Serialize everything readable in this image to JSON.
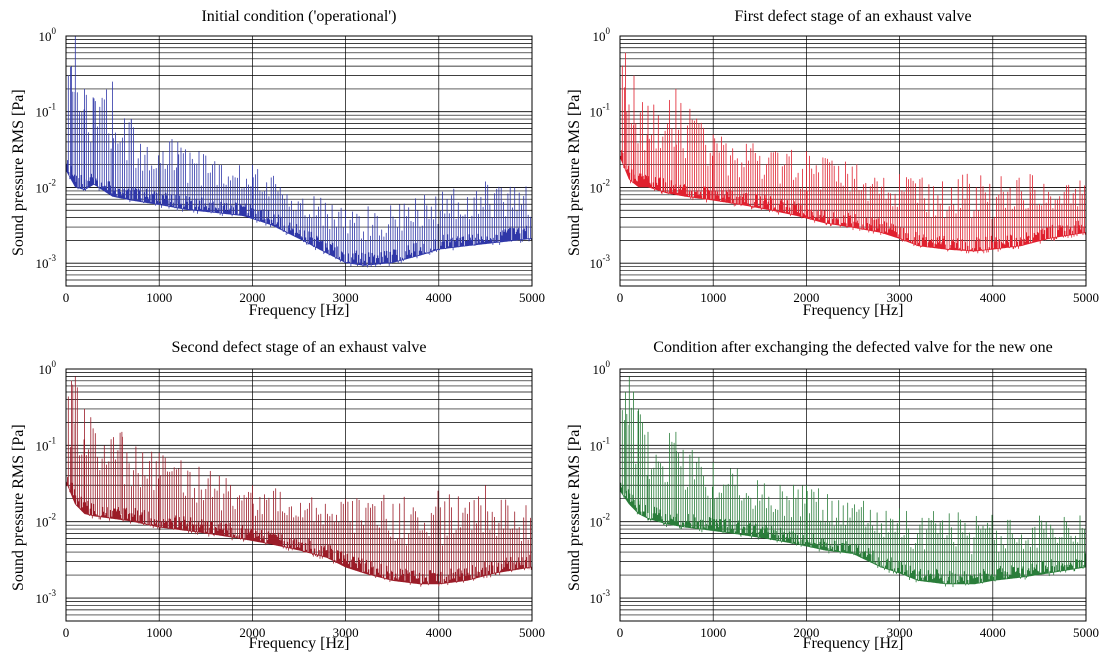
{
  "chart_data": [
    {
      "type": "line",
      "title": "Initial condition ('operational')",
      "xlabel": "Frequency [Hz]",
      "ylabel": "Sound pressure RMS [Pa]",
      "xlim": [
        0,
        5000
      ],
      "ylim": [
        0.0005,
        1
      ],
      "yscale": "log",
      "grid": true,
      "xticks": [
        "0",
        "1000",
        "2000",
        "3000",
        "4000",
        "5000"
      ],
      "yticks": [
        {
          "base": "10",
          "exp": "0"
        },
        {
          "base": "10",
          "exp": "-1"
        },
        {
          "base": "10",
          "exp": "-2"
        },
        {
          "base": "10",
          "exp": "-3"
        }
      ],
      "color": "#2f37a8",
      "series": [
        {
          "x": [
            0,
            100,
            200,
            300,
            500,
            700,
            1000,
            1300,
            1600,
            1900,
            2200,
            2500,
            2800,
            3000,
            3200,
            3500,
            3800,
            4000,
            4300,
            4600,
            5000
          ],
          "values": [
            0.02,
            0.012,
            0.011,
            0.013,
            0.009,
            0.008,
            0.007,
            0.006,
            0.0055,
            0.005,
            0.0038,
            0.0025,
            0.0016,
            0.0012,
            0.0011,
            0.0012,
            0.0015,
            0.0018,
            0.002,
            0.0022,
            0.0025
          ],
          "peaks": [
            [
              100,
              1.0
            ],
            [
              60,
              0.4
            ],
            [
              200,
              0.2
            ],
            [
              300,
              0.15
            ],
            [
              500,
              0.25
            ],
            [
              700,
              0.08
            ],
            [
              1200,
              0.04
            ],
            [
              2000,
              0.02
            ],
            [
              3000,
              0.005
            ],
            [
              4500,
              0.012
            ],
            [
              5000,
              0.01
            ]
          ]
        }
      ]
    },
    {
      "type": "line",
      "title": "First defect stage of an exhaust valve",
      "xlabel": "Frequency [Hz]",
      "ylabel": "Sound pressure RMS [Pa]",
      "xlim": [
        0,
        5000
      ],
      "ylim": [
        0.0005,
        1
      ],
      "yscale": "log",
      "grid": true,
      "xticks": [
        "0",
        "1000",
        "2000",
        "3000",
        "4000",
        "5000"
      ],
      "yticks": [
        {
          "base": "10",
          "exp": "0"
        },
        {
          "base": "10",
          "exp": "-1"
        },
        {
          "base": "10",
          "exp": "-2"
        },
        {
          "base": "10",
          "exp": "-3"
        }
      ],
      "color": "#e0202e",
      "series": [
        {
          "x": [
            0,
            100,
            200,
            300,
            500,
            700,
            1000,
            1300,
            1600,
            1900,
            2200,
            2500,
            2800,
            3000,
            3200,
            3500,
            3800,
            4000,
            4300,
            4600,
            5000
          ],
          "values": [
            0.03,
            0.015,
            0.012,
            0.012,
            0.01,
            0.009,
            0.008,
            0.007,
            0.006,
            0.005,
            0.004,
            0.0035,
            0.003,
            0.0025,
            0.002,
            0.0018,
            0.0017,
            0.0018,
            0.002,
            0.0025,
            0.003
          ],
          "peaks": [
            [
              60,
              0.6
            ],
            [
              150,
              0.3
            ],
            [
              300,
              0.12
            ],
            [
              600,
              0.2
            ],
            [
              1000,
              0.05
            ],
            [
              2000,
              0.03
            ],
            [
              3000,
              0.015
            ],
            [
              4400,
              0.015
            ],
            [
              5000,
              0.012
            ]
          ]
        }
      ]
    },
    {
      "type": "line",
      "title": "Second defect stage of an exhaust valve",
      "xlabel": "Frequency [Hz]",
      "ylabel": "Sound pressure RMS [Pa]",
      "xlim": [
        0,
        5000
      ],
      "ylim": [
        0.0005,
        1
      ],
      "yscale": "log",
      "grid": true,
      "xticks": [
        "0",
        "1000",
        "2000",
        "3000",
        "4000",
        "5000"
      ],
      "yticks": [
        {
          "base": "10",
          "exp": "0"
        },
        {
          "base": "10",
          "exp": "-1"
        },
        {
          "base": "10",
          "exp": "-2"
        },
        {
          "base": "10",
          "exp": "-3"
        }
      ],
      "color": "#9b1c28",
      "series": [
        {
          "x": [
            0,
            100,
            200,
            300,
            500,
            700,
            1000,
            1300,
            1600,
            1900,
            2200,
            2500,
            2800,
            3000,
            3200,
            3500,
            3800,
            4000,
            4300,
            4600,
            5000
          ],
          "values": [
            0.04,
            0.02,
            0.015,
            0.014,
            0.013,
            0.012,
            0.01,
            0.009,
            0.008,
            0.007,
            0.006,
            0.005,
            0.004,
            0.003,
            0.0025,
            0.002,
            0.0018,
            0.0018,
            0.002,
            0.0025,
            0.003
          ],
          "peaks": [
            [
              60,
              0.7
            ],
            [
              100,
              0.8
            ],
            [
              200,
              0.3
            ],
            [
              600,
              0.15
            ],
            [
              1000,
              0.08
            ],
            [
              2000,
              0.03
            ],
            [
              3000,
              0.02
            ],
            [
              4500,
              0.03
            ],
            [
              5000,
              0.015
            ]
          ]
        }
      ]
    },
    {
      "type": "line",
      "title": "Condition after exchanging the defected valve for the new one",
      "xlabel": "Frequency [Hz]",
      "ylabel": "Sound pressure RMS [Pa]",
      "xlim": [
        0,
        5000
      ],
      "ylim": [
        0.0005,
        1
      ],
      "yscale": "log",
      "grid": true,
      "xticks": [
        "0",
        "1000",
        "2000",
        "3000",
        "4000",
        "5000"
      ],
      "yticks": [
        {
          "base": "10",
          "exp": "0"
        },
        {
          "base": "10",
          "exp": "-1"
        },
        {
          "base": "10",
          "exp": "-2"
        },
        {
          "base": "10",
          "exp": "-3"
        }
      ],
      "color": "#2a7d3a",
      "series": [
        {
          "x": [
            0,
            100,
            200,
            300,
            500,
            700,
            1000,
            1300,
            1600,
            1900,
            2200,
            2500,
            2800,
            3000,
            3200,
            3500,
            3800,
            4000,
            4300,
            4600,
            5000
          ],
          "values": [
            0.03,
            0.02,
            0.015,
            0.013,
            0.011,
            0.01,
            0.009,
            0.008,
            0.007,
            0.006,
            0.005,
            0.0045,
            0.003,
            0.0025,
            0.002,
            0.0018,
            0.0018,
            0.002,
            0.0022,
            0.0025,
            0.003
          ],
          "peaks": [
            [
              100,
              0.8
            ],
            [
              60,
              0.5
            ],
            [
              200,
              0.3
            ],
            [
              300,
              0.15
            ],
            [
              600,
              0.15
            ],
            [
              1000,
              0.06
            ],
            [
              2000,
              0.03
            ],
            [
              3000,
              0.015
            ],
            [
              4500,
              0.012
            ],
            [
              5000,
              0.012
            ]
          ]
        }
      ]
    }
  ]
}
